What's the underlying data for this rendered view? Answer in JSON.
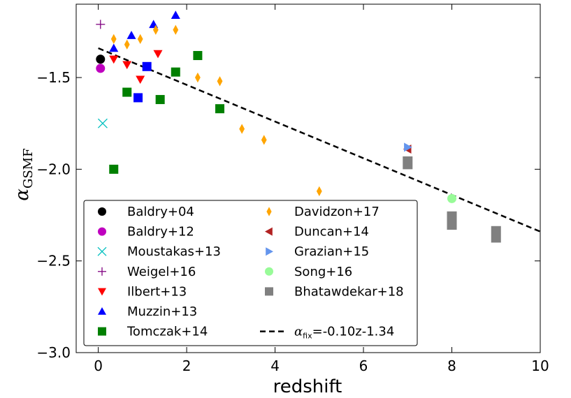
{
  "chart_data": {
    "type": "scatter",
    "xlabel": "redshift",
    "ylabel": {
      "base": "α",
      "sub": "GSMF"
    },
    "xlim": [
      -0.5,
      10
    ],
    "ylim": [
      -3.0,
      -1.1
    ],
    "xticks": [
      0,
      2,
      4,
      6,
      8,
      10
    ],
    "xtick_labels": [
      "0",
      "2",
      "4",
      "6",
      "8",
      "10"
    ],
    "yticks": [
      -1.5,
      -2.0,
      -2.5,
      -3.0
    ],
    "ytick_labels": [
      "−1.5",
      "−2.0",
      "−2.5",
      "−3.0"
    ],
    "legend_position": "lower-left",
    "series": [
      {
        "name": "Baldry+04",
        "marker": "circle",
        "color": "#000000",
        "points": [
          [
            0.05,
            -1.4
          ]
        ]
      },
      {
        "name": "Baldry+12",
        "marker": "circle",
        "color": "#bf00bf",
        "points": [
          [
            0.05,
            -1.45
          ]
        ]
      },
      {
        "name": "Moustakas+13",
        "marker": "x",
        "color": "#00bfbf",
        "points": [
          [
            0.1,
            -1.75
          ]
        ]
      },
      {
        "name": "Weigel+16",
        "marker": "plus",
        "color": "#800080",
        "points": [
          [
            0.05,
            -1.21
          ]
        ]
      },
      {
        "name": "Ilbert+13",
        "marker": "triangle-down",
        "color": "#ff0000",
        "points": [
          [
            0.35,
            -1.4
          ],
          [
            0.65,
            -1.43
          ],
          [
            0.95,
            -1.51
          ],
          [
            1.35,
            -1.37
          ]
        ]
      },
      {
        "name": "Muzzin+13",
        "marker": "triangle-up",
        "color": "#0000ff",
        "points": [
          [
            0.35,
            -1.34
          ],
          [
            0.75,
            -1.27
          ],
          [
            1.25,
            -1.21
          ],
          [
            1.75,
            -1.16
          ]
        ]
      },
      {
        "name": "Tomczak+14",
        "marker": "square",
        "color": "#008000",
        "points": [
          [
            0.35,
            -2.0
          ],
          [
            0.65,
            -1.58
          ],
          [
            1.4,
            -1.62
          ],
          [
            1.75,
            -1.47
          ],
          [
            2.25,
            -1.38
          ],
          [
            2.75,
            -1.67
          ]
        ]
      },
      {
        "name": "Davidzon+17",
        "marker": "diamond",
        "color": "#ffa500",
        "points": [
          [
            0.35,
            -1.29
          ],
          [
            0.65,
            -1.32
          ],
          [
            0.95,
            -1.29
          ],
          [
            1.3,
            -1.24
          ],
          [
            1.75,
            -1.24
          ],
          [
            2.25,
            -1.5
          ],
          [
            2.75,
            -1.52
          ],
          [
            3.25,
            -1.78
          ],
          [
            3.75,
            -1.84
          ],
          [
            5.0,
            -2.12
          ]
        ]
      },
      {
        "name": "Duncan+14",
        "marker": "triangle-left",
        "color": "#b22222",
        "points": [
          [
            7.0,
            -1.89
          ]
        ]
      },
      {
        "name": "Grazian+15",
        "marker": "triangle-right",
        "color": "#6495ed",
        "points": [
          [
            7.0,
            -1.88
          ]
        ]
      },
      {
        "name": "Song+16",
        "marker": "circle",
        "color": "#98fb98",
        "points": [
          [
            8.0,
            -2.16
          ]
        ]
      },
      {
        "name": "Bhatawdekar+18",
        "marker": "bar",
        "color": "#808080",
        "ranges": [
          [
            7.0,
            -2.0,
            -1.93
          ],
          [
            8.0,
            -2.33,
            -2.23
          ],
          [
            9.0,
            -2.4,
            -2.31
          ]
        ]
      },
      {
        "name": "Baldry+12",
        "marker": "square",
        "color": "#0000ff",
        "legend": false,
        "points": [
          [
            0.9,
            -1.61
          ],
          [
            1.1,
            -1.44
          ]
        ]
      }
    ],
    "fit_line": {
      "label": "=-0.10z-1.34",
      "label_math": {
        "base": "α",
        "sub": "fix"
      },
      "slope": -0.1,
      "intercept": -1.34,
      "x_range": [
        0,
        10
      ],
      "style": "dashed",
      "color": "#000000"
    }
  }
}
